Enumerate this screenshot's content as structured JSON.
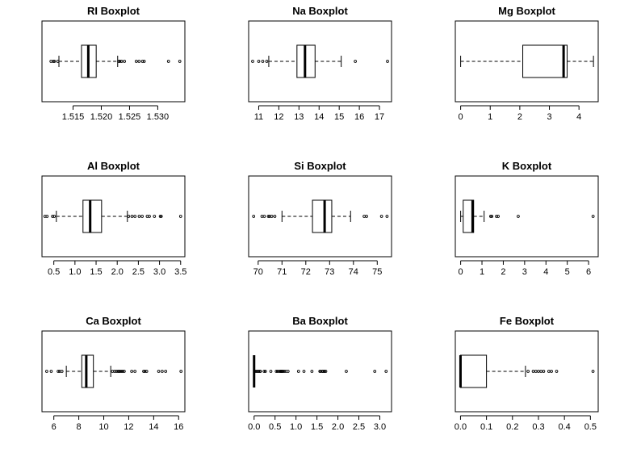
{
  "figure_background": "#ffffff",
  "chart_data": [
    {
      "type": "boxplot",
      "title": "RI Boxplot",
      "orientation": "horizontal",
      "xlim": [
        1.5095,
        1.5348
      ],
      "ticks": [
        1.515,
        1.52,
        1.525,
        1.53
      ],
      "tick_labels": [
        "1.515",
        "1.520",
        "1.525",
        "1.530"
      ],
      "whisker_low": 1.5125,
      "q1": 1.5165,
      "median": 1.5177,
      "q3": 1.5191,
      "whisker_high": 1.5229,
      "outliers": [
        1.5111,
        1.5115,
        1.5117,
        1.5123,
        1.5231,
        1.5233,
        1.5236,
        1.5241,
        1.5262,
        1.5267,
        1.5273,
        1.5276,
        1.5319,
        1.5339
      ]
    },
    {
      "type": "boxplot",
      "title": "Na Boxplot",
      "orientation": "horizontal",
      "xlim": [
        10.5,
        17.6
      ],
      "ticks": [
        11,
        12,
        13,
        14,
        15,
        16,
        17
      ],
      "tick_labels": [
        "11",
        "12",
        "13",
        "14",
        "15",
        "16",
        "17"
      ],
      "whisker_low": 11.5,
      "q1": 12.9,
      "median": 13.3,
      "q3": 13.8,
      "whisker_high": 15.1,
      "outliers": [
        10.7,
        11.0,
        11.2,
        11.4,
        15.8,
        17.4
      ]
    },
    {
      "type": "boxplot",
      "title": "Mg Boxplot",
      "orientation": "horizontal",
      "xlim": [
        -0.18,
        4.65
      ],
      "ticks": [
        0,
        1,
        2,
        3,
        4
      ],
      "tick_labels": [
        "0",
        "1",
        "2",
        "3",
        "4"
      ],
      "whisker_low": 0.0,
      "q1": 2.1,
      "median": 3.48,
      "q3": 3.6,
      "whisker_high": 4.49,
      "outliers": []
    },
    {
      "type": "boxplot",
      "title": "Al Boxplot",
      "orientation": "horizontal",
      "xlim": [
        0.22,
        3.6
      ],
      "ticks": [
        0.5,
        1.0,
        1.5,
        2.0,
        2.5,
        3.0,
        3.5
      ],
      "tick_labels": [
        "0.5",
        "1.0",
        "1.5",
        "2.0",
        "2.5",
        "3.0",
        "3.5"
      ],
      "whisker_low": 0.56,
      "q1": 1.19,
      "median": 1.36,
      "q3": 1.63,
      "whisker_high": 2.24,
      "outliers": [
        0.29,
        0.34,
        0.47,
        0.51,
        2.27,
        2.35,
        2.42,
        2.52,
        2.59,
        2.71,
        2.76,
        2.88,
        3.02,
        3.04,
        3.5
      ]
    },
    {
      "type": "boxplot",
      "title": "Si Boxplot",
      "orientation": "horizontal",
      "xlim": [
        69.6,
        75.6
      ],
      "ticks": [
        70,
        71,
        72,
        73,
        74,
        75
      ],
      "tick_labels": [
        "70",
        "71",
        "72",
        "73",
        "74",
        "75"
      ],
      "whisker_low": 71.0,
      "q1": 72.28,
      "median": 72.79,
      "q3": 73.09,
      "whisker_high": 73.88,
      "outliers": [
        69.81,
        70.16,
        70.26,
        70.43,
        70.48,
        70.57,
        70.7,
        74.45,
        74.55,
        75.18,
        75.41
      ]
    },
    {
      "type": "boxplot",
      "title": "K Boxplot",
      "orientation": "horizontal",
      "xlim": [
        -0.25,
        6.45
      ],
      "ticks": [
        0,
        1,
        2,
        3,
        4,
        5,
        6
      ],
      "tick_labels": [
        "0",
        "1",
        "2",
        "3",
        "4",
        "5",
        "6"
      ],
      "whisker_low": 0.0,
      "q1": 0.12,
      "median": 0.56,
      "q3": 0.61,
      "whisker_high": 1.1,
      "outliers": [
        1.41,
        1.46,
        1.68,
        1.76,
        2.7,
        6.21
      ]
    },
    {
      "type": "boxplot",
      "title": "Ca Boxplot",
      "orientation": "horizontal",
      "xlim": [
        5.05,
        16.5
      ],
      "ticks": [
        6,
        8,
        10,
        12,
        14,
        16
      ],
      "tick_labels": [
        "6",
        "8",
        "10",
        "12",
        "14",
        "16"
      ],
      "whisker_low": 7.0,
      "q1": 8.24,
      "median": 8.6,
      "q3": 9.17,
      "whisker_high": 10.56,
      "outliers": [
        5.43,
        5.79,
        6.35,
        6.47,
        6.65,
        10.7,
        10.88,
        11.02,
        11.14,
        11.22,
        11.3,
        11.41,
        11.52,
        11.64,
        12.24,
        12.5,
        13.2,
        13.3,
        13.44,
        14.4,
        14.68,
        14.96,
        16.19
      ]
    },
    {
      "type": "boxplot",
      "title": "Ba Boxplot",
      "orientation": "horizontal",
      "xlim": [
        -0.13,
        3.28
      ],
      "ticks": [
        0.0,
        0.5,
        1.0,
        1.5,
        2.0,
        2.5,
        3.0
      ],
      "tick_labels": [
        "0.0",
        "0.5",
        "1.0",
        "1.5",
        "2.0",
        "2.5",
        "3.0"
      ],
      "whisker_low": 0.0,
      "q1": 0.0,
      "median": 0.0,
      "q3": 0.0,
      "whisker_high": 0.0,
      "outliers": [
        0.03,
        0.06,
        0.09,
        0.11,
        0.14,
        0.15,
        0.24,
        0.27,
        0.4,
        0.53,
        0.56,
        0.6,
        0.63,
        0.64,
        0.66,
        0.67,
        0.69,
        0.72,
        0.76,
        0.81,
        1.06,
        1.19,
        1.38,
        1.57,
        1.59,
        1.63,
        1.64,
        1.67,
        1.68,
        1.71,
        2.2,
        2.88,
        3.15
      ]
    },
    {
      "type": "boxplot",
      "title": "Fe Boxplot",
      "orientation": "horizontal",
      "xlim": [
        -0.02,
        0.53
      ],
      "ticks": [
        0.0,
        0.1,
        0.2,
        0.3,
        0.4,
        0.5
      ],
      "tick_labels": [
        "0.0",
        "0.1",
        "0.2",
        "0.3",
        "0.4",
        "0.5"
      ],
      "whisker_low": 0.0,
      "q1": 0.0,
      "median": 0.0,
      "q3": 0.1,
      "whisker_high": 0.25,
      "outliers": [
        0.26,
        0.28,
        0.29,
        0.3,
        0.31,
        0.32,
        0.34,
        0.35,
        0.37,
        0.51
      ]
    }
  ]
}
